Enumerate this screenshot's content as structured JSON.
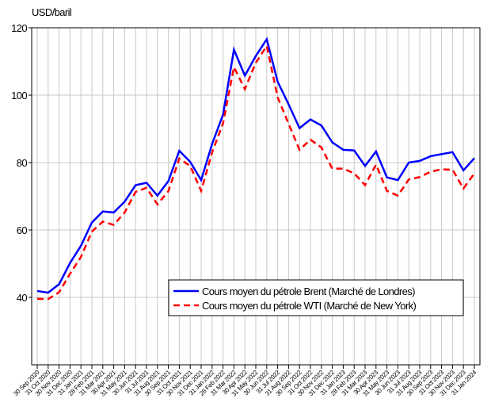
{
  "chart_data": {
    "type": "line",
    "y_label": "USD/baril",
    "categories": [
      "30 Sep 2020",
      "31 Oct 2020",
      "30 Nov 2020",
      "31 Dec 2020",
      "31 Jan 2021",
      "28 Feb 2021",
      "31 Mar 2021",
      "30 Apr 2021",
      "31 May 2021",
      "30 Jun 2021",
      "31 Jul 2021",
      "31 Aug 2021",
      "30 Sep 2021",
      "31 Oct 2021",
      "30 Nov 2021",
      "31 Dec 2021",
      "31 Jan 2022",
      "28 Feb 2022",
      "31 Mar 2022",
      "30 Apr 2022",
      "31 May 2022",
      "30 Jun 2022",
      "31 Jul 2022",
      "31 Aug 2022",
      "30 Sep 2022",
      "31 Oct 2022",
      "30 Nov 2022",
      "31 Dec 2022",
      "31 Jan 2023",
      "28 Feb 2023",
      "31 Mar 2023",
      "30 Apr 2023",
      "31 May 2023",
      "30 Jun 2023",
      "31 Jul 2023",
      "31 Aug 2023",
      "30 Sep 2023",
      "31 Oct 2023",
      "30 Nov 2023",
      "31 Dec 2023",
      "31 Jan 2024"
    ],
    "series": [
      {
        "name": "Cours moyen du pétrole Brent (Marché de Londres)",
        "color": "#0000ff",
        "dash": "solid",
        "values": [
          41.9,
          41.4,
          43.9,
          50.2,
          55.3,
          62.2,
          65.5,
          65.2,
          68.4,
          73.3,
          74.0,
          70.2,
          74.5,
          83.5,
          80.2,
          74.8,
          85.5,
          94.2,
          113.5,
          105.8,
          111.6,
          116.6,
          104.0,
          97.3,
          90.2,
          92.8,
          91.0,
          86.0,
          83.8,
          83.6,
          79.0,
          83.3,
          75.6,
          74.8,
          80.0,
          80.5,
          81.9,
          82.5,
          83.1,
          77.7,
          81.3
        ]
      },
      {
        "name": "Cours moyen du pétrole WTI (Marché de New York)",
        "color": "#ff0000",
        "dash": "dashed",
        "values": [
          39.6,
          39.5,
          41.5,
          47.0,
          52.0,
          59.5,
          62.5,
          61.5,
          65.2,
          71.3,
          72.5,
          67.6,
          71.5,
          81.2,
          79.0,
          71.6,
          83.0,
          91.6,
          108.3,
          101.8,
          109.6,
          114.6,
          99.4,
          91.5,
          83.8,
          86.8,
          84.5,
          78.2,
          78.2,
          76.8,
          73.3,
          79.4,
          71.6,
          70.2,
          75.0,
          75.7,
          77.3,
          78.0,
          77.9,
          72.3,
          76.8
        ]
      }
    ],
    "ylim": [
      20,
      120
    ],
    "yticks": [
      40,
      60,
      80,
      100,
      120
    ],
    "grid": true
  }
}
